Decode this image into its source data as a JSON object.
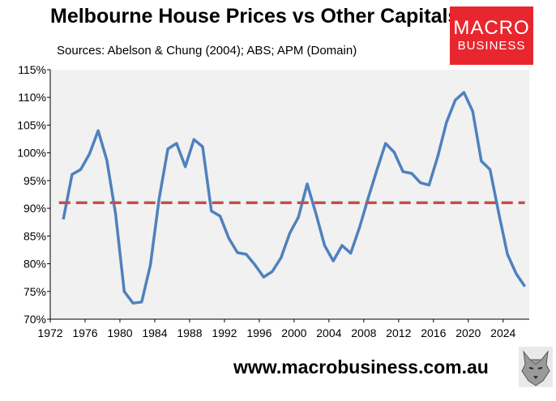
{
  "title": "Melbourne House Prices vs Other Capitals",
  "subtitle": "Sources: Abelson & Chung (2004); ABS; APM (Domain)",
  "logo": {
    "line1": "MACRO",
    "line2": "BUSINESS"
  },
  "footer": "www.macrobusiness.com.au",
  "chart_data": {
    "type": "line",
    "title": "Melbourne House Prices vs Other Capitals",
    "subtitle": "Sources: Abelson & Chung (2004); ABS; APM (Domain)",
    "xlim": [
      1972,
      2027
    ],
    "ylim": [
      70,
      115
    ],
    "x_ticks": [
      1972,
      1976,
      1980,
      1984,
      1988,
      1992,
      1996,
      2000,
      2004,
      2008,
      2012,
      2016,
      2020,
      2024
    ],
    "x_tick_labels": [
      "1972",
      "1976",
      "1980",
      "1984",
      "1988",
      "1992",
      "1996",
      "2000",
      "2004",
      "2008",
      "2012",
      "2016",
      "2020",
      "2024"
    ],
    "y_ticks": [
      70,
      75,
      80,
      85,
      90,
      95,
      100,
      105,
      110,
      115
    ],
    "y_tick_labels": [
      "70%",
      "75%",
      "80%",
      "85%",
      "90%",
      "95%",
      "100%",
      "105%",
      "110%",
      "115%"
    ],
    "grid": false,
    "series": [
      {
        "color": "#4f81bd",
        "x": [
          1973.5,
          1974.5,
          1975.5,
          1976.5,
          1977.5,
          1978.5,
          1979.5,
          1980.5,
          1981.5,
          1982.5,
          1983.5,
          1984.5,
          1985.5,
          1986.5,
          1987.5,
          1988.5,
          1989.5,
          1990.5,
          1991.5,
          1992.5,
          1993.5,
          1994.5,
          1995.5,
          1996.5,
          1997.5,
          1998.5,
          1999.5,
          2000.5,
          2001.5,
          2002.5,
          2003.5,
          2004.5,
          2005.5,
          2006.5,
          2007.5,
          2008.5,
          2009.5,
          2010.5,
          2011.5,
          2012.5,
          2013.5,
          2014.5,
          2015.5,
          2016.5,
          2017.5,
          2018.5,
          2019.5,
          2020.5,
          2021.5,
          2022.5,
          2023.5,
          2024.5,
          2025.5,
          2026.5
        ],
        "y": [
          88.0,
          96.1,
          97.0,
          99.8,
          104.0,
          98.7,
          89.0,
          75.0,
          72.9,
          73.1,
          79.8,
          91.7,
          100.7,
          101.7,
          97.5,
          102.4,
          101.1,
          89.5,
          88.6,
          84.6,
          82.0,
          81.7,
          79.8,
          77.6,
          78.6,
          81.1,
          85.5,
          88.4,
          94.4,
          89.1,
          83.3,
          80.5,
          83.3,
          81.9,
          86.5,
          91.8,
          96.9,
          101.7,
          100.1,
          96.6,
          96.3,
          94.6,
          94.2,
          99.4,
          105.5,
          109.5,
          110.9,
          107.5,
          98.5,
          97.0,
          89.1,
          81.7,
          78.2,
          75.9
        ]
      },
      {
        "color": "#c0504d",
        "style": "dashed",
        "x": [
          1973,
          2026.5
        ],
        "y": [
          91,
          91
        ]
      }
    ]
  }
}
